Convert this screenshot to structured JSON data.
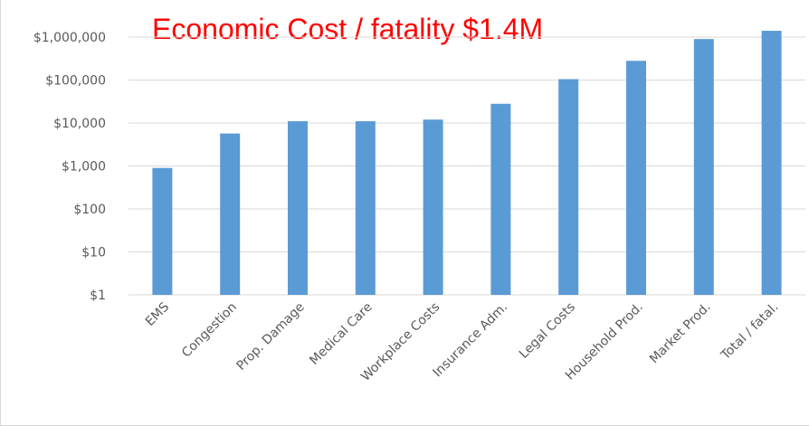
{
  "chart_data": {
    "type": "bar",
    "title": "Economic Cost / fatality $1.4M",
    "y_scale": "log10",
    "ylim": [
      1,
      1000000
    ],
    "y_tick_labels": [
      "$1",
      "$10",
      "$100",
      "$1,000",
      "$10,000",
      "$100,000",
      "$1,000,000"
    ],
    "y_tick_values": [
      1,
      10,
      100,
      1000,
      10000,
      100000,
      1000000
    ],
    "categories": [
      "EMS",
      "Congestion",
      "Prop. Damage",
      "Medical Care",
      "Workplace Costs",
      "Insurance Adm.",
      "Legal Costs",
      "Household Prod.",
      "Market Prod.",
      "Total / fatal."
    ],
    "values": [
      900,
      5700,
      11000,
      11000,
      12000,
      28000,
      105000,
      280000,
      900000,
      1400000
    ],
    "grid": "horizontal",
    "bar_color": "#5b9bd5",
    "title_color": "#ff0000"
  }
}
